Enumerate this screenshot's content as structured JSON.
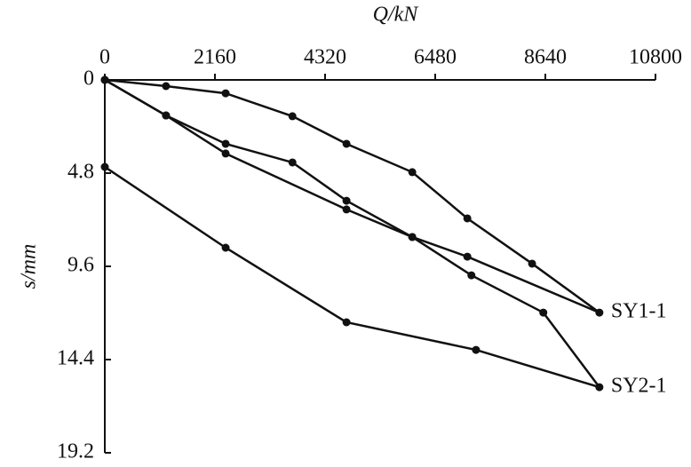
{
  "chart_data": {
    "type": "line",
    "x_label": "Q/kN",
    "y_label": "s/mm",
    "xlim": [
      0,
      10800
    ],
    "xticks": [
      0,
      2160,
      4320,
      6480,
      8640,
      10800
    ],
    "ylim": [
      0,
      19.2
    ],
    "yticks": [
      0,
      4.8,
      9.6,
      14.4,
      19.2
    ],
    "y_inverted": true,
    "series": [
      {
        "name": "SY1-1",
        "color": "#111111",
        "x": [
          0,
          1200,
          2370,
          3680,
          4740,
          6030,
          7110,
          8380,
          9700,
          7110,
          6030,
          4740,
          2370,
          1200,
          0
        ],
        "values": [
          0,
          0.32,
          0.69,
          1.87,
          3.29,
          4.75,
          7.13,
          9.46,
          11.98,
          9.1,
          8.09,
          6.67,
          3.79,
          1.83,
          0
        ]
      },
      {
        "name": "SY2-1",
        "color": "#111111",
        "x": [
          0,
          1200,
          2370,
          3680,
          4740,
          6030,
          7190,
          8600,
          9700,
          7280,
          4740,
          2370,
          0
        ],
        "values": [
          0,
          1.83,
          3.29,
          4.25,
          6.22,
          8.09,
          10.06,
          11.98,
          15.82,
          13.9,
          12.48,
          8.64,
          4.48
        ]
      }
    ]
  }
}
